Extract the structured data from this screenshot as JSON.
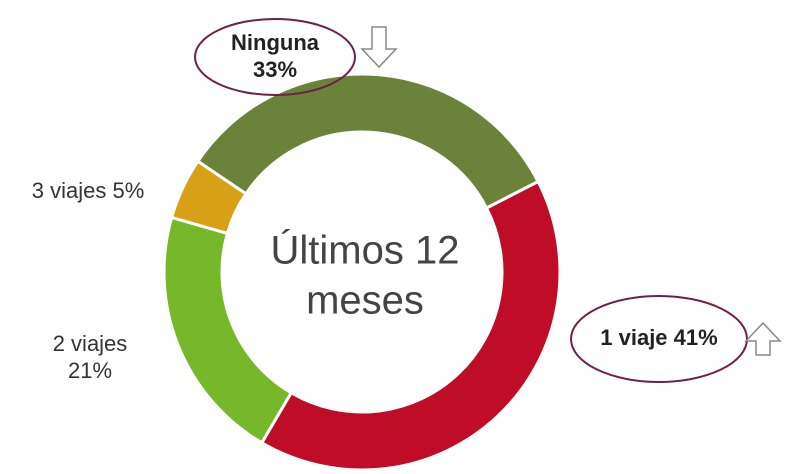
{
  "chart_data": {
    "type": "donut",
    "center_label": [
      "Últimos 12",
      "meses"
    ],
    "categories": [
      "1 viaje",
      "2 viajes",
      "3 viajes",
      "Ninguna"
    ],
    "values": [
      41,
      21,
      5,
      33
    ],
    "value_labels": [
      "41%",
      "21%",
      "5%",
      "33%"
    ],
    "colors": [
      "#c00d27",
      "#77b82a",
      "#d8a017",
      "#6b823b"
    ]
  }
}
